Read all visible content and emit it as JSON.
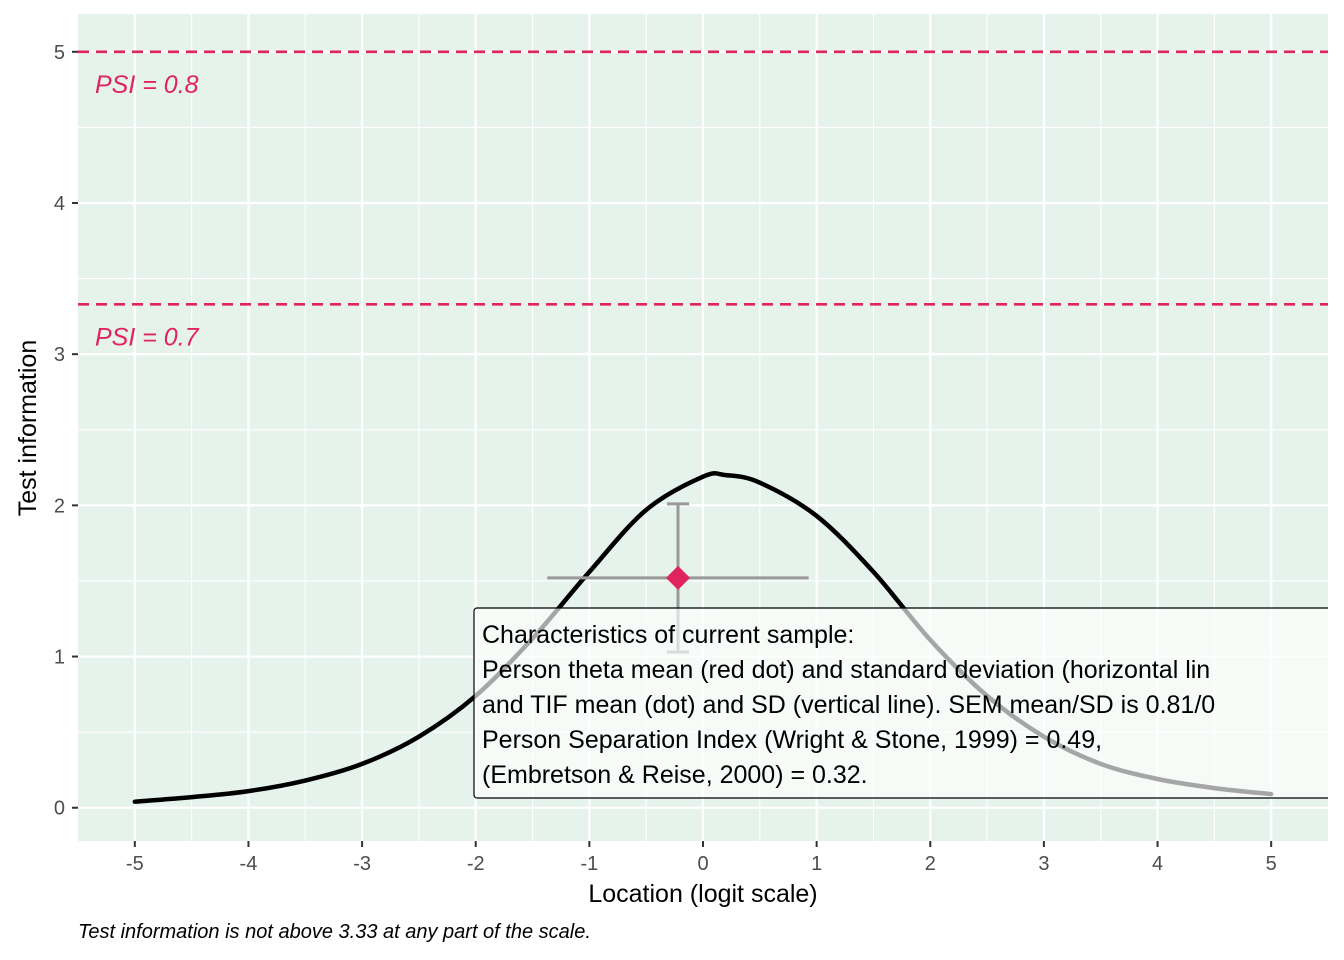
{
  "colors": {
    "panel_background": "#e6f2ec",
    "grid": "#ffffff",
    "accent": "#e0245e",
    "curve": "#000000",
    "curve_overlay": "#b3b3b3",
    "errorbar": "#999999"
  },
  "chart_data": {
    "type": "line",
    "title": "",
    "xlabel": "Location (logit scale)",
    "ylabel": "Test information",
    "xlim": [
      -5.5,
      5.5
    ],
    "ylim": [
      -0.22,
      5.25
    ],
    "x_ticks": [
      -5,
      -4,
      -3,
      -2,
      -1,
      0,
      1,
      2,
      3,
      4,
      5
    ],
    "y_ticks": [
      0,
      1,
      2,
      3,
      4,
      5
    ],
    "grid": true,
    "series": [
      {
        "x": [
          -5,
          -4.5,
          -4,
          -3.5,
          -3,
          -2.5,
          -2,
          -1.5,
          -1,
          -0.5,
          0,
          0.2,
          0.5,
          1,
          1.5,
          2,
          2.5,
          3,
          3.5,
          4,
          4.5,
          5
        ],
        "y": [
          0.04,
          0.07,
          0.11,
          0.18,
          0.29,
          0.47,
          0.74,
          1.12,
          1.56,
          1.97,
          2.19,
          2.2,
          2.15,
          1.93,
          1.56,
          1.11,
          0.74,
          0.47,
          0.29,
          0.19,
          0.13,
          0.09
        ]
      }
    ],
    "reference_lines": [
      {
        "y": 5.0,
        "label": "PSI = 0.8"
      },
      {
        "y": 3.33,
        "label": "PSI = 0.7"
      }
    ],
    "sample_point": {
      "x": -0.22,
      "y": 1.52,
      "x_sd_range": [
        -1.37,
        0.93
      ],
      "y_sd_range": [
        1.03,
        2.01
      ]
    },
    "annotation_lines": [
      "Characteristics of current sample:",
      "Person theta mean (red dot) and standard deviation (horizontal lin",
      "and TIF mean (dot) and SD (vertical line). SEM mean/SD is 0.81/0",
      "Person Separation Index (Wright & Stone, 1999) = 0.49,",
      "(Embretson & Reise, 2000) = 0.32."
    ],
    "caption": "Test information is not above 3.33 at any part of the scale."
  }
}
